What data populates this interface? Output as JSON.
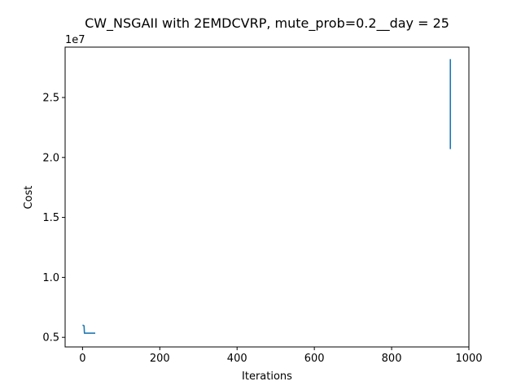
{
  "chart_data": {
    "type": "line",
    "title": "CW_NSGAII with 2EMDCVRP, mute_prob=0.2__day = 25",
    "xlabel": "Iterations",
    "ylabel": "Cost",
    "y_offset_label": "1e7",
    "xlim": [
      -45,
      1000
    ],
    "ylim": [
      4200000,
      29200000
    ],
    "x_ticks": [
      0,
      200,
      400,
      600,
      800,
      1000
    ],
    "x_tick_labels": [
      "0",
      "200",
      "400",
      "600",
      "800",
      "1000"
    ],
    "y_ticks": [
      5000000,
      10000000,
      15000000,
      20000000,
      25000000
    ],
    "y_tick_labels": [
      "0.5",
      "1.0",
      "1.5",
      "2.0",
      "2.5"
    ],
    "grid": false,
    "series": [
      {
        "color": "#1f77b4",
        "segments": [
          [
            [
              0,
              6000000
            ],
            [
              2,
              6000000
            ],
            [
              4,
              5950000
            ],
            [
              5,
              5350000
            ],
            [
              10,
              5350000
            ],
            [
              20,
              5350000
            ],
            [
              33,
              5350000
            ]
          ],
          [
            [
              952,
              28200000
            ],
            [
              952,
              20700000
            ]
          ]
        ]
      }
    ]
  }
}
